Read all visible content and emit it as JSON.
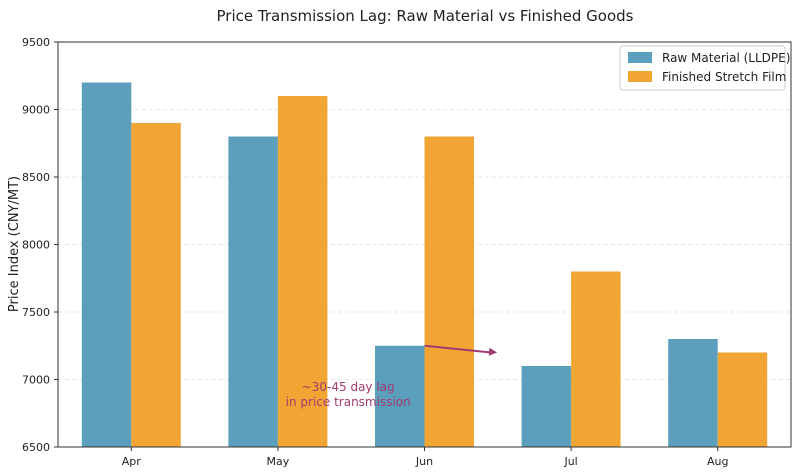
{
  "chart_data": {
    "type": "bar",
    "title": "Price Transmission Lag: Raw Material vs Finished Goods",
    "xlabel": "",
    "ylabel": "Price Index (CNY/MT)",
    "categories": [
      "Apr",
      "May",
      "Jun",
      "Jul",
      "Aug"
    ],
    "series": [
      {
        "name": "Raw Material (LLDPE)",
        "values": [
          9200,
          8800,
          7250,
          7100,
          7300
        ],
        "color": "#5b9fbc"
      },
      {
        "name": "Finished Stretch Film",
        "values": [
          8900,
          9100,
          8800,
          7800,
          7200
        ],
        "color": "#f0a535"
      }
    ],
    "ylim": [
      6500,
      9500
    ],
    "yticks": [
      "6500",
      "7000",
      "7500",
      "8000",
      "8500",
      "9000",
      "9500"
    ],
    "grid": true,
    "legend_position": "top-right",
    "annotation": {
      "lines": [
        "~30-45 day lag",
        "in price transmission"
      ],
      "color": "#a23b72",
      "arrow_from": {
        "category": "Jun",
        "value": 7250
      },
      "arrow_to": {
        "category": "Jul",
        "value": 7200
      }
    }
  }
}
